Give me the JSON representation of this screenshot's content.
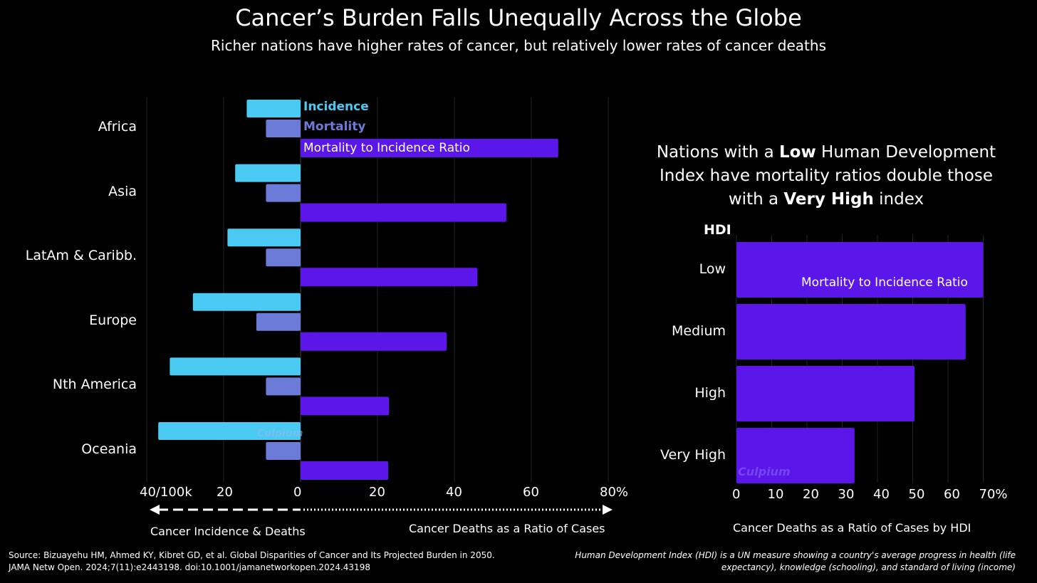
{
  "title": "Cancer’s Burden Falls Unequally Across the Globe",
  "subtitle": "Richer nations have higher rates of cancer, but relatively lower rates of cancer deaths",
  "colors": {
    "incidence": "#4ac9f2",
    "mortality": "#6c7ad8",
    "ratio": "#5b16ea",
    "background": "#000000"
  },
  "chart_data": [
    {
      "type": "bar",
      "orientation": "horizontal",
      "categories": [
        "Africa",
        "Asia",
        "LatAm & Caribb.",
        "Europe",
        "Nth America",
        "Oceania"
      ],
      "series": [
        {
          "name": "Incidence",
          "unit": "per 100k",
          "side": "left",
          "values": [
            14,
            17,
            19,
            28,
            34,
            37
          ]
        },
        {
          "name": "Mortality",
          "unit": "per 100k",
          "side": "left",
          "values": [
            9,
            9,
            9,
            11.5,
            9,
            9
          ]
        },
        {
          "name": "Mortality to Incidence Ratio",
          "unit": "%",
          "side": "right",
          "values": [
            67,
            53.5,
            46,
            38,
            23,
            22.8
          ]
        }
      ],
      "left_axis": {
        "range": [
          0,
          40
        ],
        "ticks": [
          "40/100k",
          "20",
          "0"
        ],
        "label": "Cancer Incidence & Deaths"
      },
      "right_axis": {
        "range": [
          0,
          80
        ],
        "ticks": [
          "20",
          "40",
          "60",
          "80%"
        ],
        "label": "Cancer Deaths as a Ratio of Cases"
      },
      "legend": [
        "Incidence",
        "Mortality",
        "Mortality to Incidence Ratio"
      ],
      "watermark": "Culpium"
    },
    {
      "type": "bar",
      "orientation": "horizontal",
      "title_parts": [
        {
          "text": "Nations with a ",
          "bold": false
        },
        {
          "text": "Low",
          "bold": true
        },
        {
          "text": " Human Development Index have mortality ratios double those with a ",
          "bold": false
        },
        {
          "text": "Very High",
          "bold": true
        },
        {
          "text": " index",
          "bold": false
        }
      ],
      "category_header": "HDI",
      "categories": [
        "Low",
        "Medium",
        "High",
        "Very High"
      ],
      "series": [
        {
          "name": "Mortality to Incidence Ratio",
          "values": [
            70,
            65,
            50.5,
            33.5
          ]
        }
      ],
      "x_axis": {
        "range": [
          0,
          70
        ],
        "ticks": [
          "0",
          "10",
          "20",
          "30",
          "40",
          "50",
          "60",
          "70%"
        ],
        "label": "Cancer Deaths as a Ratio of Cases by HDI"
      },
      "watermark": "Culpium"
    }
  ],
  "source": {
    "line1": "Source: Bizuayehu HM, Ahmed KY, Kibret GD, et al. Global Disparities of Cancer and Its Projected Burden in 2050.",
    "line2": "JAMA Netw Open. 2024;7(11):e2443198. doi:10.1001/jamanetworkopen.2024.43198"
  },
  "note": "Human Development Index (HDI) is a UN measure showing a country's average progress in health (life expectancy), knowledge (schooling), and standard of living (income)"
}
